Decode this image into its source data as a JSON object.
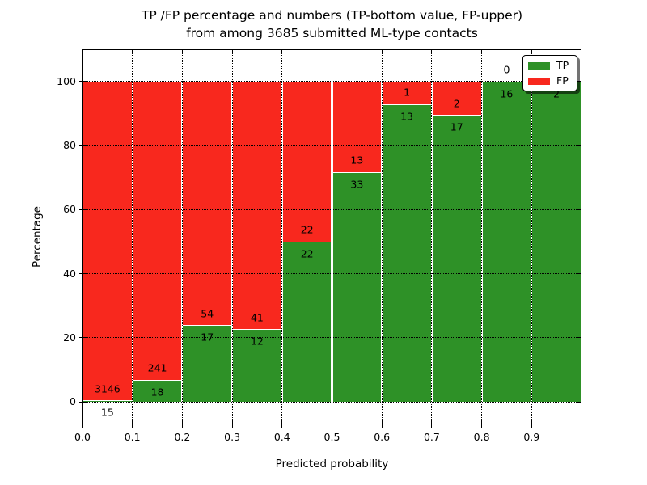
{
  "chart_data": {
    "type": "bar",
    "subtype": "stacked-percentage",
    "title_line1": "TP /FP percentage and numbers (TP-bottom value, FP-upper)",
    "title_line2": "from among 3685 submitted ML-type contacts",
    "xlabel": "Predicted probability",
    "ylabel": "Percentage",
    "total_contacts": 3685,
    "xlim": [
      0.0,
      1.0
    ],
    "ylim_rendered": [
      -7,
      110
    ],
    "grid": "dotted-black-on-top",
    "xtick_values": [
      0.0,
      0.1,
      0.2,
      0.3,
      0.4,
      0.5,
      0.6,
      0.7,
      0.8,
      0.9
    ],
    "xtick_labels": [
      "0.0",
      "0.1",
      "0.2",
      "0.3",
      "0.4",
      "0.5",
      "0.6",
      "0.7",
      "0.8",
      "0.9"
    ],
    "ytick_values": [
      0,
      20,
      40,
      60,
      80,
      100
    ],
    "ytick_labels": [
      "0",
      "20",
      "40",
      "60",
      "80",
      "100"
    ],
    "bin_width": 0.1,
    "categories": [
      "0.0-0.1",
      "0.1-0.2",
      "0.2-0.3",
      "0.3-0.4",
      "0.4-0.5",
      "0.5-0.6",
      "0.6-0.7",
      "0.7-0.8",
      "0.8-0.9",
      "0.9-1.0"
    ],
    "bins": [
      {
        "range": "0.0-0.1",
        "x0": 0.0,
        "tp": 15,
        "fp": 3146,
        "tp_pct": 0.47
      },
      {
        "range": "0.1-0.2",
        "x0": 0.1,
        "tp": 18,
        "fp": 241,
        "tp_pct": 6.95
      },
      {
        "range": "0.2-0.3",
        "x0": 0.2,
        "tp": 17,
        "fp": 54,
        "tp_pct": 23.94
      },
      {
        "range": "0.3-0.4",
        "x0": 0.3,
        "tp": 12,
        "fp": 41,
        "tp_pct": 22.64
      },
      {
        "range": "0.4-0.5",
        "x0": 0.4,
        "tp": 22,
        "fp": 22,
        "tp_pct": 50.0
      },
      {
        "range": "0.5-0.6",
        "x0": 0.5,
        "tp": 33,
        "fp": 13,
        "tp_pct": 71.74
      },
      {
        "range": "0.6-0.7",
        "x0": 0.6,
        "tp": 13,
        "fp": 1,
        "tp_pct": 92.86
      },
      {
        "range": "0.7-0.8",
        "x0": 0.7,
        "tp": 17,
        "fp": 2,
        "tp_pct": 89.47
      },
      {
        "range": "0.8-0.9",
        "x0": 0.8,
        "tp": 16,
        "fp": 0,
        "tp_pct": 100.0
      },
      {
        "range": "0.9-1.0",
        "x0": 0.9,
        "tp": 2,
        "fp": 0,
        "tp_pct": 100.0
      }
    ],
    "series": [
      {
        "name": "TP",
        "color": "#2e9127",
        "position": "bottom"
      },
      {
        "name": "FP",
        "color": "#f8281e",
        "position": "top"
      }
    ],
    "legend": {
      "position": "upper-right",
      "entries": [
        "TP",
        "FP"
      ]
    },
    "colors": {
      "tp_green": "#2e9127",
      "fp_red": "#f8281e",
      "grid": "#000000",
      "bar_edge": "#ffffff",
      "background": "#ffffff"
    }
  }
}
